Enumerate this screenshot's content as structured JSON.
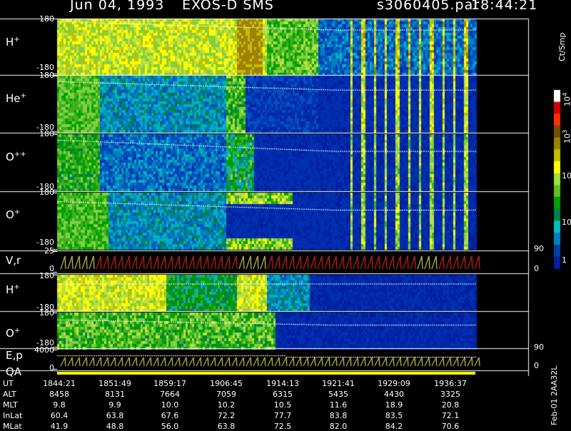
{
  "header": {
    "date": "Jun 04, 1993",
    "instrument": "EXOS-D SMS",
    "file": "s3060405.par",
    "time": "18:44:21"
  },
  "chart_data": {
    "type": "heatmap",
    "panels": [
      {
        "title": "H",
        "sup": "+",
        "ymax": "180",
        "ymin": "-180"
      },
      {
        "title": "He",
        "sup": "+",
        "ymax": "180",
        "ymin": "-180"
      },
      {
        "title": "O",
        "sup": "++",
        "ymax": "180",
        "ymin": "-180"
      },
      {
        "title": "O",
        "sup": "+",
        "ymax": "180",
        "ymin": "-180"
      },
      {
        "title": "V,r",
        "ymax": "25",
        "ymin": "0",
        "right_top": "90",
        "right_bot": "0"
      },
      {
        "title": "H",
        "sup": "+",
        "ymax": "180",
        "ymin": "-180"
      },
      {
        "title": "O",
        "sup": "+",
        "ymax": "180",
        "ymin": "-180"
      },
      {
        "title": "E,p",
        "ymax": "4000",
        "ymin": "0",
        "right_top": "90",
        "right_bot": "0"
      },
      {
        "title": "QA"
      }
    ],
    "colorbar": {
      "unit": "Ct/Smp",
      "labels": [
        {
          "base": "10",
          "exp": "4"
        },
        {
          "base": "10",
          "exp": "3"
        },
        {
          "base": "100",
          "exp": ""
        },
        {
          "base": "10",
          "exp": ""
        },
        {
          "base": "1",
          "exp": ""
        }
      ],
      "colors": [
        "#ffffff",
        "#d00000",
        "#ff3000",
        "#705000",
        "#a08000",
        "#c0c000",
        "#ffff00",
        "#a0e040",
        "#60c020",
        "#00a000",
        "#008040",
        "#00c0c0",
        "#0080c0",
        "#0040a0",
        "#0020a0"
      ]
    },
    "ephemeris": {
      "rows": [
        {
          "label": "UT",
          "values": [
            "1844:21",
            "1851:49",
            "1859:17",
            "1906:45",
            "1914:13",
            "1921:41",
            "1929:09",
            "1936:37"
          ]
        },
        {
          "label": "ALT",
          "values": [
            "8458",
            "8131",
            "7664",
            "7059",
            "6315",
            "5435",
            "4430",
            "3325"
          ]
        },
        {
          "label": "MLT",
          "values": [
            "9.8",
            "9.9",
            "10.0",
            "10.2",
            "10.5",
            "11.6",
            "18.9",
            "20.8"
          ]
        },
        {
          "label": "InLat",
          "values": [
            "60.4",
            "63.8",
            "67.6",
            "72.2",
            "77.7",
            "83.8",
            "83.5",
            "72.1"
          ]
        },
        {
          "label": "MLat",
          "values": [
            "41.9",
            "48.8",
            "56.0",
            "63.8",
            "72.5",
            "82.0",
            "84.2",
            "70.6"
          ]
        }
      ]
    },
    "version_label": "Feb-01 2AA32L"
  }
}
